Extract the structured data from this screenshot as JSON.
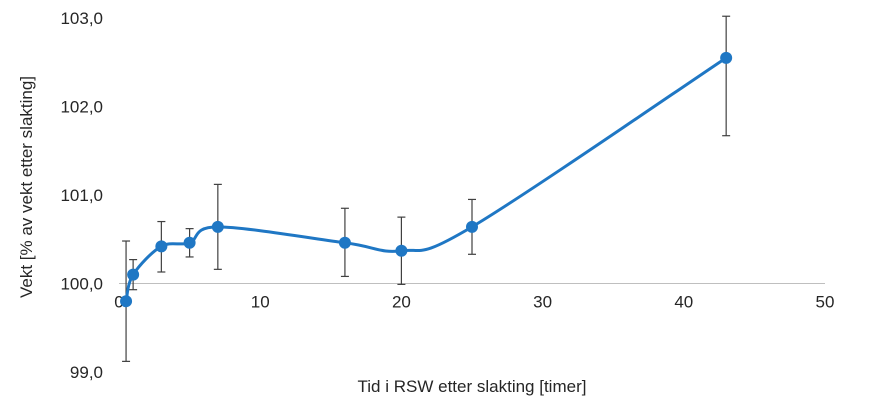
{
  "chart_data": {
    "type": "scatter",
    "title": "",
    "xlabel": "Tid i RSW etter slakting [timer]",
    "ylabel": "Vekt [% av vekt etter slakting]",
    "xlim": [
      0,
      50
    ],
    "ylim": [
      99.0,
      103.0
    ],
    "x_ticks": [
      0,
      10,
      20,
      30,
      40,
      50
    ],
    "x_tick_labels": [
      "0",
      "10",
      "20",
      "30",
      "40",
      "50"
    ],
    "y_ticks": [
      99.0,
      100.0,
      101.0,
      102.0,
      103.0
    ],
    "y_tick_labels": [
      "99,0",
      "100,0",
      "101,0",
      "102,0",
      "103,0"
    ],
    "x_axis_crosses_at": 100.0,
    "grid": false,
    "smooth_line": true,
    "series_color": "#1f77c4",
    "errorbar_color": "#404040",
    "series": [
      {
        "name": "",
        "points": [
          {
            "x": 0.5,
            "y": 99.8,
            "err_low": 99.12,
            "err_high": 100.48
          },
          {
            "x": 1,
            "y": 100.1,
            "err_low": 99.93,
            "err_high": 100.27
          },
          {
            "x": 3,
            "y": 100.42,
            "err_low": 100.13,
            "err_high": 100.7
          },
          {
            "x": 5,
            "y": 100.46,
            "err_low": 100.3,
            "err_high": 100.62
          },
          {
            "x": 7,
            "y": 100.64,
            "err_low": 100.16,
            "err_high": 101.12
          },
          {
            "x": 16,
            "y": 100.46,
            "err_low": 100.08,
            "err_high": 100.85
          },
          {
            "x": 20,
            "y": 100.37,
            "err_low": 99.99,
            "err_high": 100.75
          },
          {
            "x": 25,
            "y": 100.64,
            "err_low": 100.33,
            "err_high": 100.95
          },
          {
            "x": 43,
            "y": 102.55,
            "err_low": 101.67,
            "err_high": 103.02
          }
        ]
      }
    ]
  }
}
